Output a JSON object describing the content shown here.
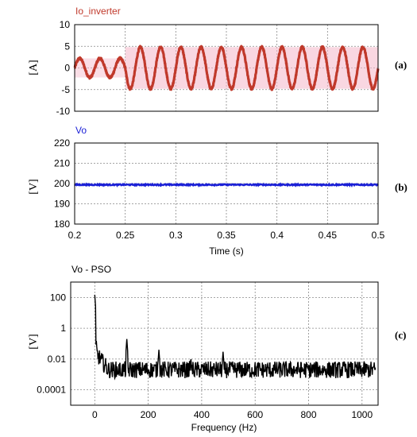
{
  "chart_data": [
    {
      "panel": "(a)",
      "type": "line",
      "series_title": "Io_inverter",
      "ylabel": "[A]",
      "xlabel": "",
      "xlim": [
        0.2,
        0.5
      ],
      "ylim": [
        -10,
        10
      ],
      "x_ticks": [
        0.2,
        0.25,
        0.3,
        0.35,
        0.4,
        0.45,
        0.5
      ],
      "y_ticks": [
        10,
        5,
        0,
        -5,
        -10
      ],
      "y_tick_labels": [
        "10",
        "5",
        "0",
        "-5",
        "-10"
      ],
      "grid": true,
      "signal": {
        "frequency_hz": 50,
        "segments": [
          {
            "x_range": [
              0.2,
              0.25
            ],
            "amplitude": 2.2
          },
          {
            "x_range": [
              0.25,
              0.5
            ],
            "amplitude": 4.8
          }
        ]
      },
      "colors": {
        "line": "#c0392b",
        "band": "#f4b6c8"
      }
    },
    {
      "panel": "(b)",
      "type": "line",
      "series_title": "Vo",
      "ylabel": "[V]",
      "xlabel": "Time (s)",
      "xlim": [
        0.2,
        0.5
      ],
      "ylim": [
        180,
        220
      ],
      "x_ticks": [
        0.2,
        0.25,
        0.3,
        0.35,
        0.4,
        0.45,
        0.5
      ],
      "y_ticks": [
        220,
        210,
        200,
        190,
        180
      ],
      "y_tick_labels": [
        "220",
        "210",
        "200",
        "190",
        "180"
      ],
      "grid": true,
      "signal": {
        "mean": 199.4,
        "ripple": 0.6
      },
      "colors": {
        "line": "#1a1fd6"
      }
    },
    {
      "panel": "(c)",
      "type": "line",
      "series_title": "Vo - PSO",
      "ylabel": "[V]",
      "xlabel": "Frequency (Hz)",
      "xlim": [
        -90,
        1060
      ],
      "ylim_log10": [
        -5,
        3
      ],
      "x_ticks": [
        0,
        200,
        400,
        600,
        800,
        1000
      ],
      "y_ticks_log10": [
        2,
        0,
        -2,
        -4
      ],
      "y_tick_labels": [
        "100",
        "1",
        "0.01",
        "0.0001"
      ],
      "grid": true,
      "spectrum": {
        "baseline": 0.002,
        "peaks": [
          {
            "f": 0,
            "v": 150
          },
          {
            "f": 6,
            "v": 0.15
          },
          {
            "f": 120,
            "v": 0.2
          },
          {
            "f": 240,
            "v": 0.04
          },
          {
            "f": 360,
            "v": 0.01
          },
          {
            "f": 480,
            "v": 0.03
          }
        ]
      },
      "colors": {
        "line": "#000000"
      }
    }
  ]
}
